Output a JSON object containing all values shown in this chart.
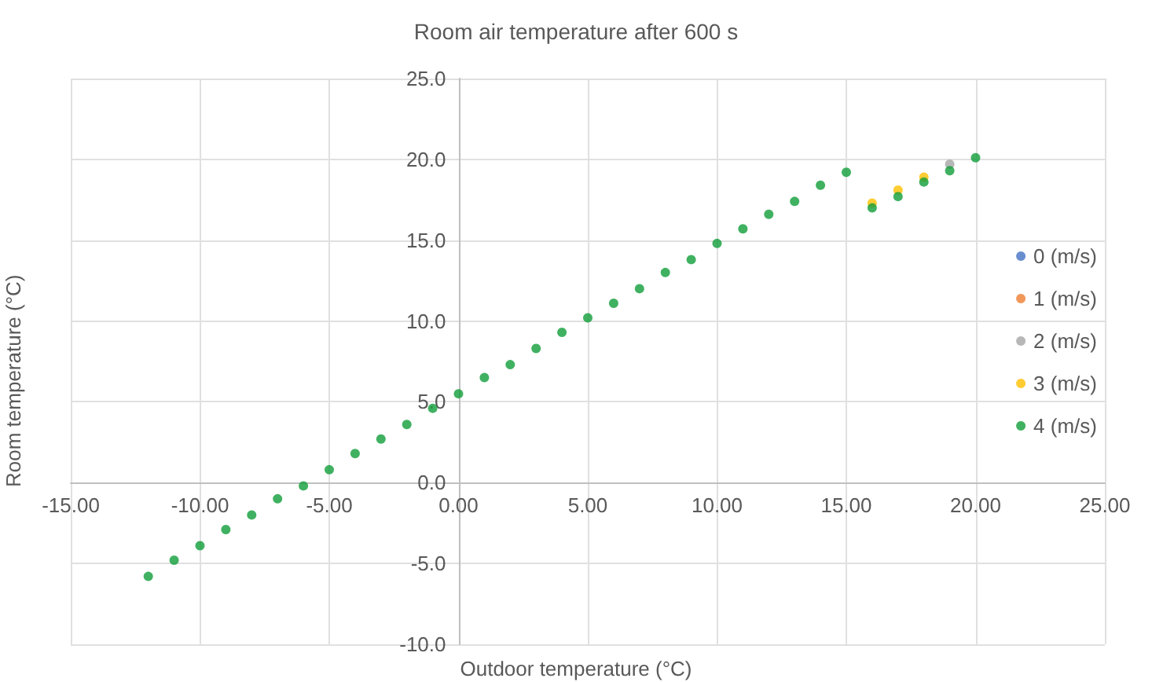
{
  "chart_data": {
    "type": "scatter",
    "title": "Room air temperature after 600 s",
    "xlabel": "Outdoor temperature (°C)",
    "ylabel": "Room temperature (°C)",
    "x": [
      -12,
      -11,
      -10,
      -9,
      -8,
      -7,
      -6,
      -5,
      -4,
      -3,
      -2,
      -1,
      0,
      1,
      2,
      3,
      4,
      5,
      6,
      7,
      8,
      9,
      10,
      11,
      12,
      13,
      14,
      15,
      16,
      17,
      18,
      19,
      20
    ],
    "series": [
      {
        "name": "0 (m/s)",
        "color": "#4472c4",
        "values": [
          null,
          null,
          null,
          null,
          null,
          null,
          null,
          null,
          null,
          null,
          null,
          null,
          null,
          null,
          null,
          null,
          null,
          null,
          null,
          null,
          null,
          null,
          null,
          null,
          null,
          null,
          null,
          null,
          null,
          null,
          null,
          null,
          null
        ]
      },
      {
        "name": "1 (m/s)",
        "color": "#ed7d31",
        "values": [
          null,
          null,
          null,
          null,
          null,
          null,
          null,
          null,
          null,
          null,
          null,
          null,
          null,
          null,
          null,
          null,
          null,
          null,
          null,
          null,
          null,
          null,
          null,
          null,
          null,
          null,
          null,
          null,
          null,
          null,
          null,
          null,
          null
        ]
      },
      {
        "name": "2 (m/s)",
        "color": "#a5a5a5",
        "values": [
          null,
          null,
          null,
          null,
          null,
          null,
          null,
          null,
          null,
          null,
          null,
          null,
          null,
          null,
          null,
          null,
          null,
          null,
          null,
          null,
          null,
          null,
          null,
          null,
          null,
          null,
          null,
          null,
          null,
          null,
          null,
          19.7,
          null
        ]
      },
      {
        "name": "3 (m/s)",
        "color": "#ffc000",
        "values": [
          null,
          null,
          null,
          null,
          null,
          null,
          null,
          null,
          null,
          null,
          null,
          null,
          null,
          null,
          null,
          null,
          null,
          null,
          null,
          null,
          null,
          null,
          null,
          null,
          null,
          null,
          null,
          null,
          17.3,
          18.1,
          18.9,
          null,
          null
        ]
      },
      {
        "name": "4 (m/s)",
        "color": "#109d3a",
        "values": [
          -5.8,
          -4.8,
          -3.9,
          -2.9,
          -2.0,
          -1.0,
          -0.2,
          0.8,
          1.8,
          2.7,
          3.6,
          4.6,
          5.5,
          6.5,
          7.3,
          8.3,
          9.3,
          10.2,
          11.1,
          12.0,
          13.0,
          13.8,
          14.8,
          15.7,
          16.6,
          17.4,
          18.4,
          19.2,
          17.0,
          17.7,
          18.6,
          19.3,
          20.1
        ]
      }
    ],
    "xlim": [
      -15,
      25
    ],
    "xticks": [
      {
        "value": -15,
        "label": "-15.00"
      },
      {
        "value": -10,
        "label": "-10.00"
      },
      {
        "value": -5,
        "label": "-5.00"
      },
      {
        "value": 0,
        "label": "0.00"
      },
      {
        "value": 5,
        "label": "5.00"
      },
      {
        "value": 10,
        "label": "10.00"
      },
      {
        "value": 15,
        "label": "15.00"
      },
      {
        "value": 20,
        "label": "20.00"
      },
      {
        "value": 25,
        "label": "25.00"
      }
    ],
    "ylim": [
      -10,
      25
    ],
    "yticks": [
      {
        "value": -10,
        "label": "-10.0"
      },
      {
        "value": -5,
        "label": "-5.0"
      },
      {
        "value": 0,
        "label": "0.0"
      },
      {
        "value": 5,
        "label": "5.0"
      },
      {
        "value": 10,
        "label": "10.0"
      },
      {
        "value": 15,
        "label": "15.0"
      },
      {
        "value": 20,
        "label": "20.0"
      },
      {
        "value": 25,
        "label": "25.0"
      }
    ],
    "grid": true,
    "legend": "right",
    "marker": "circle"
  }
}
